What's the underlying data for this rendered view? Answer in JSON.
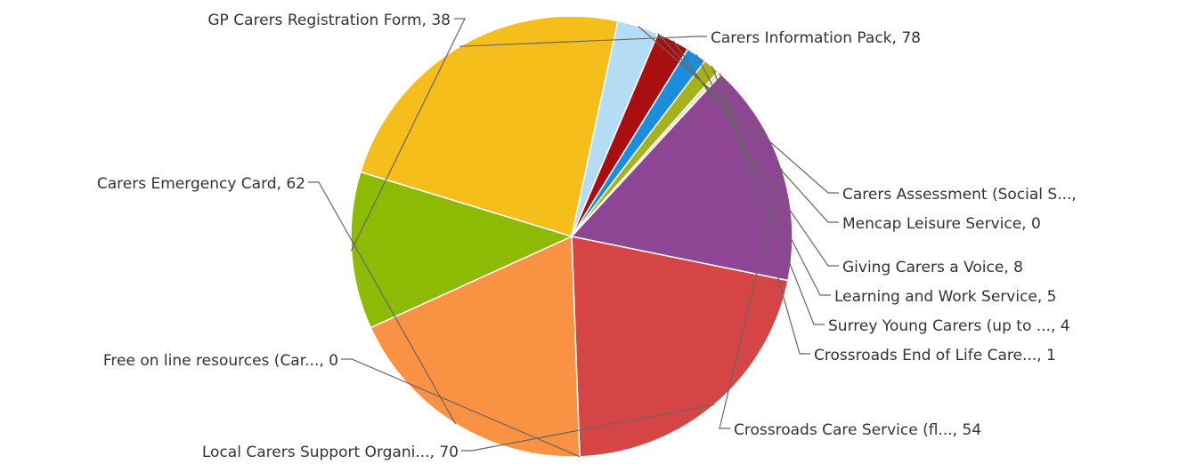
{
  "chart_data": {
    "type": "pie",
    "title": "",
    "slices": [
      {
        "label": "Carers Information Pack, 78",
        "value": 78,
        "color": "#F5BE1A"
      },
      {
        "label": "Carers Assessment (Social S...,",
        "value": 10,
        "color": "#B5DCF5"
      },
      {
        "label": "Mencap Leisure Service, 0",
        "value": 0,
        "color": "#9FC6E8"
      },
      {
        "label": "Giving Carers a Voice, 8",
        "value": 8,
        "color": "#A90F10"
      },
      {
        "label": "Learning and Work Service, 5",
        "value": 5,
        "color": "#1B8EDB"
      },
      {
        "label": "Surrey Young Carers (up to ..., 4",
        "value": 4,
        "color": "#A7B21A"
      },
      {
        "label": "Crossroads End of Life Care..., 1",
        "value": 1,
        "color": "#E8E2B8"
      },
      {
        "label": "Crossroads Care Service (fl..., 54",
        "value": 54,
        "color": "#8E4593"
      },
      {
        "label": "Local Carers Support Organi..., 70",
        "value": 70,
        "color": "#D64545"
      },
      {
        "label": "Free on line resources (Car..., 0",
        "value": 0,
        "color": "#C8C8C8"
      },
      {
        "label": "Carers Emergency Card, 62",
        "value": 62,
        "color": "#F99243"
      },
      {
        "label": "GP Carers Registration Form, 38",
        "value": 38,
        "color": "#8DBA05"
      }
    ]
  }
}
